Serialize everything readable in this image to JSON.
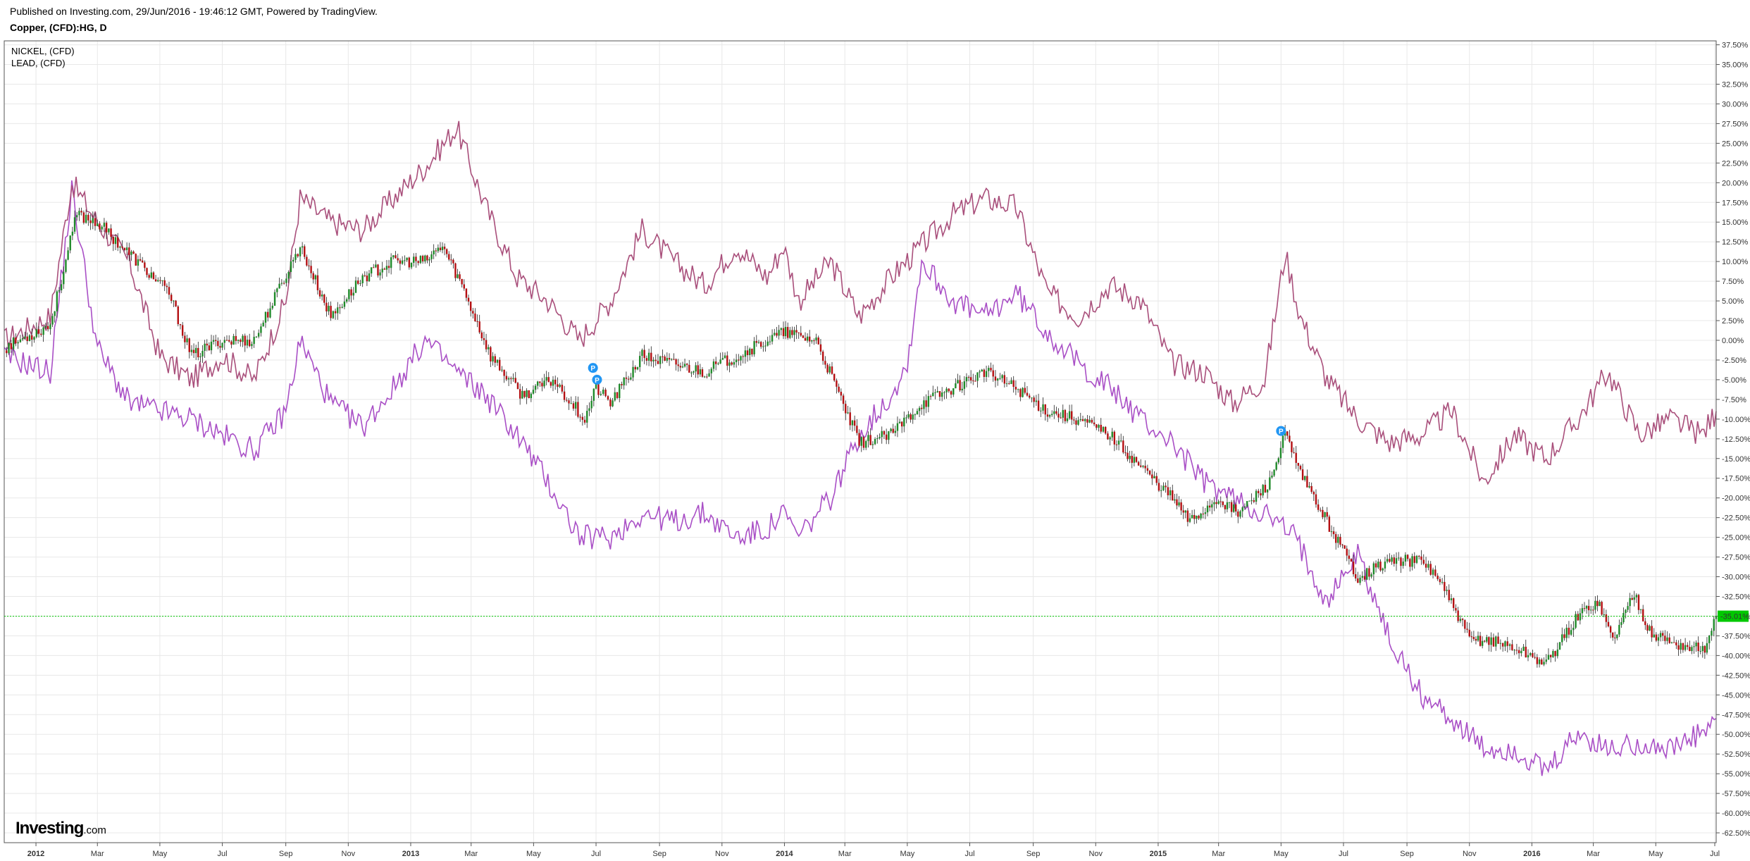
{
  "header": {
    "publish_line": "Published on Investing.com, 29/Jun/2016 - 19:46:12 GMT, Powered by TradingView.",
    "symbol_line": "Copper, (CFD):HG, D"
  },
  "legend": {
    "items": [
      {
        "label": "NICKEL,  (CFD)",
        "color": "#a94f7b"
      },
      {
        "label": "LEAD,  (CFD)",
        "color": "#a94fc6"
      }
    ]
  },
  "brand": {
    "name": "Investing",
    "suffix": ".com"
  },
  "colors": {
    "up_candle": "#1f8a2a",
    "down_candle": "#b40f12",
    "nickel_line": "#a94f7b",
    "lead_line": "#a94fc6",
    "current_price_line": "#00c800",
    "grid": "#e8e8e8",
    "pin_marker": "#2196f3"
  },
  "price_marker": {
    "label": "-35.01%",
    "value": -35.01
  },
  "chart_data": {
    "type": "line",
    "title": "Copper, (CFD):HG, D",
    "x_tick_labels": [
      "2012",
      "Mar",
      "May",
      "Jul",
      "Sep",
      "Nov",
      "2013",
      "Mar",
      "May",
      "Jul",
      "Sep",
      "Nov",
      "2014",
      "Mar",
      "May",
      "Jul",
      "Sep",
      "Nov",
      "2015",
      "Mar",
      "May",
      "Jul",
      "Sep",
      "Nov",
      "2016",
      "Mar",
      "May",
      "Jul"
    ],
    "x_range": [
      "2011-12-01",
      "2016-06-29"
    ],
    "y_unit": "percent change",
    "ylim": [
      -63.75,
      38
    ],
    "y_tick_values": [
      37.5,
      35,
      32.5,
      30,
      27.5,
      25,
      22.5,
      20,
      17.5,
      15,
      12.5,
      10,
      7.5,
      5,
      2.5,
      0,
      -2.5,
      -5,
      -7.5,
      -10,
      -12.5,
      -15,
      -17.5,
      -20,
      -22.5,
      -25,
      -27.5,
      -30,
      -32.5,
      -35,
      -37.5,
      -40,
      -42.5,
      -45,
      -47.5,
      -50,
      -52.5,
      -55,
      -57.5,
      -60,
      -62.5
    ],
    "y_tick_labels": [
      "37.50%",
      "35.00%",
      "32.50%",
      "30.00%",
      "27.50%",
      "25.00%",
      "22.50%",
      "20.00%",
      "17.50%",
      "15.00%",
      "12.50%",
      "10.00%",
      "7.50%",
      "5.00%",
      "2.50%",
      "0.00%",
      "-2.50%",
      "-5.00%",
      "-7.50%",
      "-10.00%",
      "-12.50%",
      "-15.00%",
      "-17.50%",
      "-20.00%",
      "-22.50%",
      "-25.00%",
      "-27.50%",
      "-30.00%",
      "-32.50%",
      "-35.00%",
      "-37.50%",
      "-40.00%",
      "-42.50%",
      "-45.00%",
      "-47.50%",
      "-50.00%",
      "-52.50%",
      "-55.00%",
      "-57.50%",
      "-60.00%",
      "-62.50%"
    ],
    "grid": true,
    "legend_position": "top-left",
    "series": [
      {
        "name": "Copper, (CFD):HG",
        "style": "candlestick",
        "x": [
          "2011-12-01",
          "2012-01-15",
          "2012-02-10",
          "2012-03-01",
          "2012-04-01",
          "2012-05-10",
          "2012-06-01",
          "2012-07-01",
          "2012-08-01",
          "2012-09-15",
          "2012-10-15",
          "2012-11-15",
          "2012-12-15",
          "2013-01-15",
          "2013-02-01",
          "2013-02-20",
          "2013-03-20",
          "2013-04-20",
          "2013-05-20",
          "2013-06-20",
          "2013-07-01",
          "2013-07-15",
          "2013-08-15",
          "2013-09-15",
          "2013-10-15",
          "2013-11-15",
          "2013-12-31",
          "2014-02-01",
          "2014-03-15",
          "2014-04-15",
          "2014-05-15",
          "2014-06-15",
          "2014-07-15",
          "2014-08-15",
          "2014-09-15",
          "2014-10-15",
          "2014-11-15",
          "2014-12-15",
          "2015-01-15",
          "2015-02-01",
          "2015-03-01",
          "2015-03-20",
          "2015-04-20",
          "2015-05-05",
          "2015-05-20",
          "2015-06-15",
          "2015-07-15",
          "2015-08-15",
          "2015-09-15",
          "2015-10-01",
          "2015-11-01",
          "2015-11-20",
          "2015-12-15",
          "2016-01-15",
          "2016-02-15",
          "2016-03-05",
          "2016-03-20",
          "2016-04-10",
          "2016-04-25",
          "2016-05-10",
          "2016-06-01",
          "2016-06-20",
          "2016-06-29"
        ],
        "values": [
          -1,
          2,
          16,
          15,
          11,
          6,
          -2,
          0,
          0,
          12,
          3,
          8,
          10,
          10,
          12,
          7,
          -2,
          -7,
          -5,
          -10,
          -6,
          -8,
          -2,
          -3,
          -4,
          -2,
          1,
          0,
          -13,
          -12,
          -8,
          -6,
          -4,
          -6,
          -9,
          -10,
          -12,
          -16,
          -20,
          -23,
          -20,
          -22,
          -18,
          -12,
          -17,
          -23,
          -30,
          -28,
          -28,
          -30,
          -38,
          -38,
          -39,
          -41,
          -35,
          -33,
          -38,
          -32,
          -37,
          -38,
          -39,
          -39,
          -35
        ]
      },
      {
        "name": "NICKEL,  (CFD)",
        "style": "line",
        "x": [
          "2011-12-01",
          "2012-01-15",
          "2012-02-05",
          "2012-03-01",
          "2012-04-01",
          "2012-05-01",
          "2012-06-01",
          "2012-07-01",
          "2012-08-01",
          "2012-09-01",
          "2012-09-15",
          "2012-10-15",
          "2012-11-15",
          "2012-12-15",
          "2013-01-15",
          "2013-02-15",
          "2013-03-15",
          "2013-04-15",
          "2013-05-15",
          "2013-06-15",
          "2013-07-15",
          "2013-08-15",
          "2013-09-15",
          "2013-10-15",
          "2013-11-15",
          "2013-12-15",
          "2013-12-31",
          "2014-01-15",
          "2014-02-15",
          "2014-03-15",
          "2014-04-15",
          "2014-05-15",
          "2014-06-15",
          "2014-07-15",
          "2014-08-15",
          "2014-09-15",
          "2014-10-15",
          "2014-11-15",
          "2014-12-15",
          "2015-01-15",
          "2015-02-15",
          "2015-03-15",
          "2015-04-15",
          "2015-05-05",
          "2015-05-20",
          "2015-06-15",
          "2015-07-15",
          "2015-08-15",
          "2015-09-15",
          "2015-10-15",
          "2015-11-15",
          "2015-12-15",
          "2016-01-15",
          "2016-02-15",
          "2016-03-15",
          "2016-04-15",
          "2016-05-15",
          "2016-06-15",
          "2016-06-29"
        ],
        "values": [
          0,
          3,
          20,
          15,
          10,
          -2,
          -5,
          -2,
          -5,
          5,
          18,
          15,
          14,
          18,
          22,
          27,
          17,
          8,
          5,
          0,
          5,
          14,
          10,
          7,
          12,
          8,
          12,
          5,
          10,
          3,
          8,
          12,
          16,
          18,
          17,
          6,
          3,
          7,
          5,
          -3,
          -4,
          -8,
          -5,
          11,
          3,
          -5,
          -10,
          -13,
          -12,
          -9,
          -18,
          -12,
          -15,
          -10,
          -4,
          -12,
          -10,
          -12,
          -9
        ]
      },
      {
        "name": "LEAD,  (CFD)",
        "style": "line",
        "x": [
          "2011-12-01",
          "2012-01-15",
          "2012-02-05",
          "2012-03-01",
          "2012-04-01",
          "2012-05-01",
          "2012-06-01",
          "2012-07-01",
          "2012-08-01",
          "2012-09-01",
          "2012-09-15",
          "2012-10-15",
          "2012-11-15",
          "2012-12-15",
          "2013-01-15",
          "2013-02-15",
          "2013-03-15",
          "2013-04-15",
          "2013-05-15",
          "2013-06-15",
          "2013-07-15",
          "2013-08-15",
          "2013-09-15",
          "2013-10-15",
          "2013-11-15",
          "2013-12-15",
          "2013-12-31",
          "2014-01-15",
          "2014-02-15",
          "2014-03-15",
          "2014-04-15",
          "2014-05-01",
          "2014-05-15",
          "2014-06-15",
          "2014-07-15",
          "2014-08-15",
          "2014-09-15",
          "2014-10-15",
          "2014-11-15",
          "2014-12-15",
          "2015-01-15",
          "2015-02-15",
          "2015-03-15",
          "2015-04-15",
          "2015-05-15",
          "2015-06-15",
          "2015-07-15",
          "2015-08-15",
          "2015-09-15",
          "2015-10-15",
          "2015-11-15",
          "2015-12-15",
          "2016-01-15",
          "2016-02-15",
          "2016-03-15",
          "2016-04-15",
          "2016-05-15",
          "2016-06-15",
          "2016-06-29"
        ],
        "values": [
          -2,
          -4,
          19,
          -1,
          -8,
          -9,
          -10,
          -12,
          -14,
          -9,
          0,
          -8,
          -11,
          -6,
          0,
          -4,
          -7,
          -12,
          -18,
          -25,
          -25,
          -22,
          -23,
          -22,
          -25,
          -24,
          -22,
          -25,
          -20,
          -12,
          -7,
          -3,
          10,
          5,
          3,
          6,
          1,
          -3,
          -6,
          -10,
          -13,
          -18,
          -20,
          -22,
          -25,
          -33,
          -27,
          -38,
          -45,
          -48,
          -52,
          -52,
          -55,
          -50,
          -52,
          -51,
          -52,
          -50,
          -48
        ]
      }
    ],
    "pin_markers": [
      {
        "label": "P",
        "x": "2013-06-28",
        "y": -3.5
      },
      {
        "label": "P",
        "x": "2013-07-02",
        "y": -5
      },
      {
        "label": "P",
        "x": "2015-05-01",
        "y": -11.5
      }
    ]
  }
}
